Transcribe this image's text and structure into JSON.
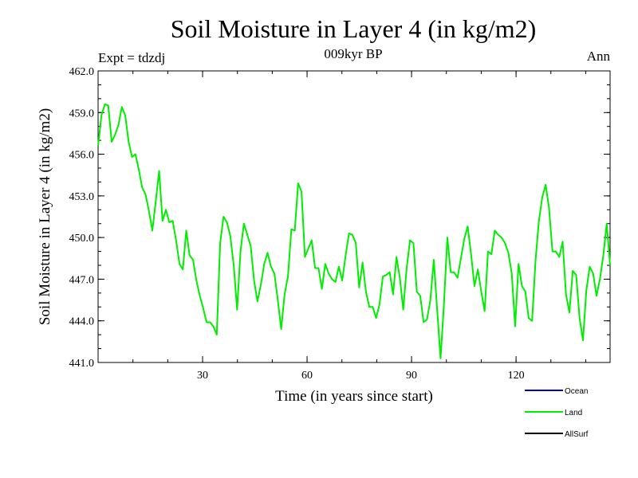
{
  "title": "Soil Moisture in Layer 4 (in kg/m2)",
  "subtitle": "009kyr BP",
  "expt_label": "Expt = tdzdj",
  "season_label": "Ann",
  "chart_data": {
    "type": "line",
    "title": "Soil Moisture in Layer 4 (in kg/m2)",
    "subtitle": "009kyr BP",
    "xlabel": "Time (in years since start)",
    "ylabel": "Soil Moisture in Layer 4 (in kg/m2)",
    "xlim": [
      0,
      147
    ],
    "ylim": [
      441.0,
      462.0
    ],
    "xticks": [
      30,
      60,
      90,
      120
    ],
    "yticks": [
      441.0,
      444.0,
      447.0,
      450.0,
      453.0,
      456.0,
      459.0,
      462.0
    ],
    "ytick_labels": [
      "441.0",
      "444.0",
      "447.0",
      "450.0",
      "453.0",
      "456.0",
      "459.0",
      "462.0"
    ],
    "legend_position": "bottom-right",
    "series": [
      {
        "name": "Ocean",
        "color": "#0000cc",
        "values": []
      },
      {
        "name": "Land",
        "color": "#00ee00",
        "values": [
          456.6,
          458.8,
          459.6,
          459.5,
          456.9,
          457.4,
          458.1,
          459.4,
          458.8,
          456.9,
          455.8,
          456.0,
          454.9,
          453.6,
          453.1,
          451.9,
          450.5,
          452.6,
          454.8,
          451.2,
          452.0,
          451.1,
          451.2,
          449.8,
          448.1,
          447.7,
          450.5,
          448.7,
          448.4,
          446.9,
          445.8,
          444.9,
          443.9,
          443.9,
          443.6,
          443.0,
          449.6,
          451.5,
          451.1,
          450.1,
          448.0,
          444.8,
          449.0,
          451.0,
          450.2,
          449.4,
          446.9,
          445.4,
          446.6,
          448.1,
          448.9,
          447.9,
          447.4,
          445.5,
          443.4,
          445.9,
          447.2,
          450.6,
          450.5,
          453.9,
          453.3,
          448.6,
          449.2,
          449.8,
          447.8,
          447.8,
          446.3,
          448.1,
          447.4,
          447.0,
          446.8,
          447.9,
          446.9,
          448.7,
          450.3,
          450.2,
          449.6,
          446.4,
          448.2,
          446.1,
          445.0,
          445.0,
          444.2,
          445.2,
          447.2,
          447.3,
          447.5,
          445.9,
          448.6,
          447.1,
          444.8,
          447.8,
          449.8,
          449.6,
          446.1,
          445.8,
          443.9,
          444.1,
          445.5,
          448.4,
          444.8,
          441.3,
          445.2,
          450.0,
          447.5,
          447.5,
          447.1,
          448.5,
          449.9,
          450.8,
          448.8,
          446.5,
          447.7,
          446.1,
          444.7,
          449.0,
          448.8,
          450.5,
          450.2,
          450.0,
          449.6,
          448.9,
          447.4,
          443.6,
          448.1,
          446.5,
          446.1,
          444.2,
          444.0,
          448.3,
          451.2,
          452.9,
          453.8,
          452.1,
          449.0,
          449.0,
          448.6,
          449.7,
          445.9,
          444.6,
          447.6,
          447.3,
          444.2,
          442.6,
          446.2,
          447.9,
          447.4,
          445.8,
          447.0,
          448.7,
          451.0,
          448.0
        ]
      },
      {
        "name": "AllSurf",
        "color": "#000000",
        "values": []
      }
    ]
  }
}
